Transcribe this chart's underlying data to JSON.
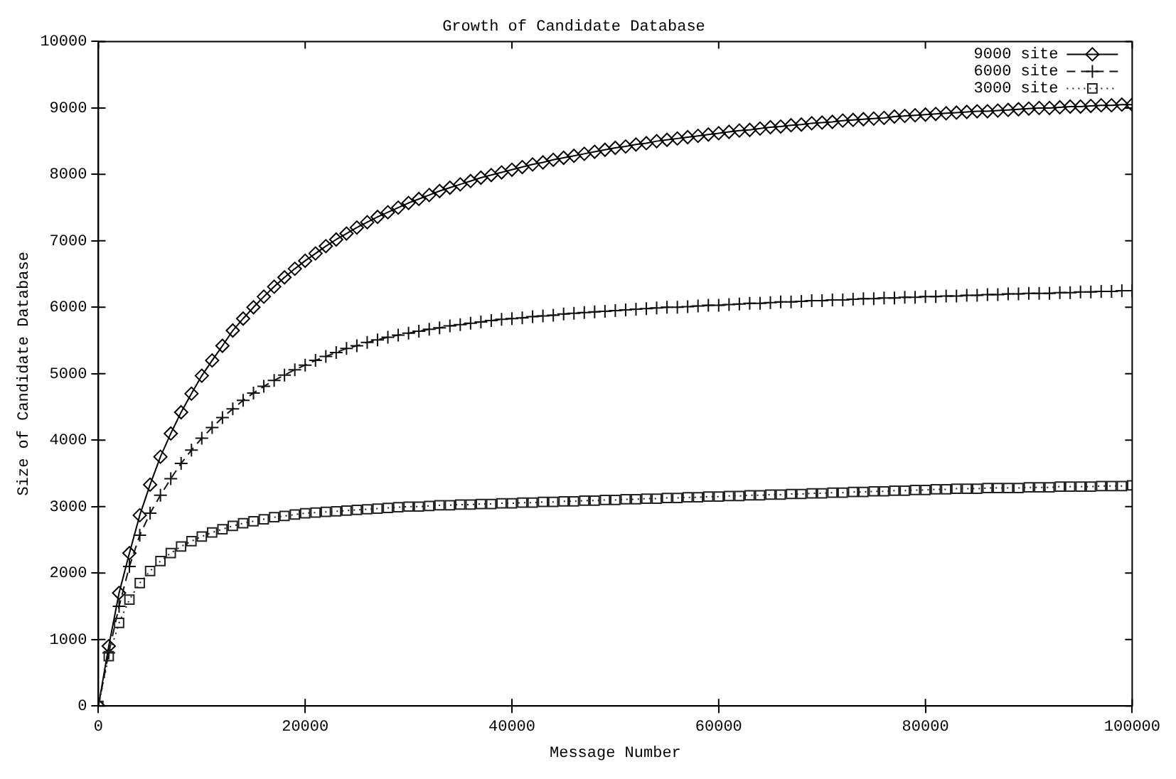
{
  "chart_data": {
    "type": "line",
    "title": "Growth of Candidate Database",
    "xlabel": "Message Number",
    "ylabel": "Size of Candidate Database",
    "x": [
      0,
      1000,
      2000,
      3000,
      4000,
      5000,
      6000,
      7000,
      8000,
      9000,
      10000,
      11000,
      12000,
      13000,
      14000,
      15000,
      16000,
      17000,
      18000,
      19000,
      20000,
      21000,
      22000,
      23000,
      24000,
      25000,
      26000,
      27000,
      28000,
      29000,
      30000,
      31000,
      32000,
      33000,
      34000,
      35000,
      36000,
      37000,
      38000,
      39000,
      40000,
      41000,
      42000,
      43000,
      44000,
      45000,
      46000,
      47000,
      48000,
      49000,
      50000,
      51000,
      52000,
      53000,
      54000,
      55000,
      56000,
      57000,
      58000,
      59000,
      60000,
      61000,
      62000,
      63000,
      64000,
      65000,
      66000,
      67000,
      68000,
      69000,
      70000,
      71000,
      72000,
      73000,
      74000,
      75000,
      76000,
      77000,
      78000,
      79000,
      80000,
      81000,
      82000,
      83000,
      84000,
      85000,
      86000,
      87000,
      88000,
      89000,
      90000,
      91000,
      92000,
      93000,
      94000,
      95000,
      96000,
      97000,
      98000,
      99000,
      100000
    ],
    "series": [
      {
        "name": "9000 site",
        "color": "#000000",
        "marker": "diamond",
        "line_style": "solid",
        "values": [
          0,
          900,
          1700,
          2300,
          2870,
          3330,
          3750,
          4100,
          4420,
          4700,
          4970,
          5200,
          5420,
          5650,
          5830,
          6000,
          6160,
          6310,
          6450,
          6580,
          6700,
          6810,
          6920,
          7020,
          7110,
          7200,
          7280,
          7360,
          7430,
          7500,
          7570,
          7630,
          7690,
          7750,
          7800,
          7850,
          7900,
          7950,
          7990,
          8030,
          8070,
          8110,
          8150,
          8180,
          8220,
          8250,
          8280,
          8310,
          8340,
          8370,
          8400,
          8420,
          8450,
          8470,
          8500,
          8520,
          8540,
          8560,
          8580,
          8600,
          8620,
          8640,
          8660,
          8670,
          8690,
          8710,
          8720,
          8740,
          8750,
          8770,
          8780,
          8790,
          8810,
          8820,
          8830,
          8840,
          8850,
          8870,
          8880,
          8890,
          8900,
          8910,
          8920,
          8930,
          8940,
          8950,
          8950,
          8960,
          8970,
          8980,
          8990,
          9000,
          9000,
          9010,
          9020,
          9020,
          9030,
          9040,
          9040,
          9050,
          9050
        ]
      },
      {
        "name": "6000 site",
        "color": "#111111",
        "marker": "cross",
        "line_style": "dashed",
        "values": [
          0,
          800,
          1500,
          2100,
          2570,
          2900,
          3170,
          3420,
          3650,
          3850,
          4030,
          4190,
          4340,
          4470,
          4600,
          4710,
          4810,
          4900,
          4980,
          5060,
          5130,
          5200,
          5260,
          5320,
          5380,
          5420,
          5470,
          5510,
          5550,
          5580,
          5610,
          5640,
          5670,
          5690,
          5720,
          5740,
          5760,
          5780,
          5800,
          5820,
          5830,
          5840,
          5860,
          5870,
          5880,
          5900,
          5910,
          5920,
          5930,
          5940,
          5950,
          5960,
          5970,
          5980,
          5990,
          6000,
          6000,
          6010,
          6020,
          6030,
          6030,
          6040,
          6050,
          6060,
          6060,
          6070,
          6080,
          6080,
          6090,
          6100,
          6100,
          6110,
          6110,
          6120,
          6130,
          6130,
          6140,
          6140,
          6150,
          6150,
          6160,
          6160,
          6170,
          6170,
          6180,
          6180,
          6190,
          6190,
          6200,
          6200,
          6210,
          6210,
          6210,
          6220,
          6220,
          6230,
          6230,
          6240,
          6240,
          6250,
          6250
        ]
      },
      {
        "name": "3000 site",
        "color": "#222222",
        "marker": "square",
        "line_style": "dotted",
        "values": [
          0,
          750,
          1250,
          1600,
          1850,
          2030,
          2180,
          2300,
          2400,
          2480,
          2550,
          2610,
          2660,
          2710,
          2750,
          2780,
          2810,
          2840,
          2860,
          2880,
          2900,
          2910,
          2920,
          2930,
          2940,
          2950,
          2960,
          2970,
          2980,
          2990,
          3000,
          3000,
          3010,
          3020,
          3020,
          3030,
          3030,
          3040,
          3040,
          3050,
          3050,
          3060,
          3060,
          3070,
          3070,
          3080,
          3080,
          3090,
          3090,
          3100,
          3100,
          3110,
          3110,
          3120,
          3120,
          3130,
          3130,
          3140,
          3140,
          3150,
          3150,
          3160,
          3160,
          3170,
          3170,
          3180,
          3180,
          3190,
          3190,
          3200,
          3200,
          3210,
          3210,
          3220,
          3220,
          3230,
          3230,
          3240,
          3240,
          3250,
          3250,
          3260,
          3260,
          3270,
          3270,
          3270,
          3280,
          3280,
          3280,
          3280,
          3290,
          3290,
          3290,
          3300,
          3300,
          3300,
          3300,
          3310,
          3310,
          3310,
          3320
        ]
      }
    ],
    "xlim": [
      0,
      100000
    ],
    "xticks": [
      0,
      20000,
      40000,
      60000,
      80000,
      100000
    ],
    "ylim": [
      0,
      10000
    ],
    "yticks": [
      0,
      1000,
      2000,
      3000,
      4000,
      5000,
      6000,
      7000,
      8000,
      9000,
      10000
    ],
    "grid": false,
    "legend": "top right"
  }
}
